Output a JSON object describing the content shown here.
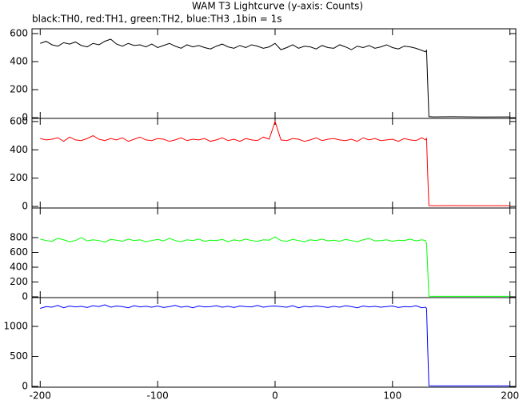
{
  "chart_data": [
    {
      "type": "line",
      "title": "WAM T3 Lightcurve (y-axis: Counts)",
      "subtitle": "black:TH0, red:TH1, green:TH2, blue:TH3 ,1bin = 1s",
      "color": "#000000",
      "x": [
        -200,
        -195,
        -190,
        -185,
        -180,
        -175,
        -170,
        -165,
        -160,
        -155,
        -150,
        -145,
        -140,
        -135,
        -130,
        -125,
        -120,
        -115,
        -110,
        -105,
        -100,
        -95,
        -90,
        -85,
        -80,
        -75,
        -70,
        -65,
        -60,
        -55,
        -50,
        -45,
        -40,
        -35,
        -30,
        -25,
        -20,
        -15,
        -10,
        -5,
        0,
        5,
        10,
        15,
        20,
        25,
        30,
        35,
        40,
        45,
        50,
        55,
        60,
        65,
        70,
        75,
        80,
        85,
        90,
        95,
        100,
        105,
        110,
        115,
        120,
        125,
        128,
        129,
        130,
        131,
        135,
        150,
        175,
        200
      ],
      "values": [
        530,
        545,
        520,
        510,
        535,
        525,
        540,
        515,
        505,
        530,
        520,
        545,
        560,
        525,
        510,
        530,
        515,
        520,
        505,
        525,
        500,
        515,
        530,
        510,
        495,
        520,
        505,
        515,
        500,
        490,
        510,
        525,
        505,
        495,
        515,
        500,
        520,
        510,
        495,
        505,
        530,
        485,
        500,
        520,
        495,
        510,
        505,
        490,
        515,
        500,
        495,
        520,
        505,
        485,
        510,
        500,
        515,
        495,
        505,
        520,
        500,
        490,
        510,
        505,
        495,
        480,
        470,
        480,
        240,
        8,
        6,
        7,
        5,
        6
      ],
      "xlim": [
        -207,
        205
      ],
      "ylim": [
        -5,
        634
      ],
      "yticks": [
        0,
        200,
        400,
        600
      ]
    },
    {
      "type": "line",
      "color": "#ff0000",
      "x": [
        -200,
        -195,
        -190,
        -185,
        -180,
        -175,
        -170,
        -165,
        -160,
        -155,
        -150,
        -145,
        -140,
        -135,
        -130,
        -125,
        -120,
        -115,
        -110,
        -105,
        -100,
        -95,
        -90,
        -85,
        -80,
        -75,
        -70,
        -65,
        -60,
        -55,
        -50,
        -45,
        -40,
        -35,
        -30,
        -25,
        -20,
        -15,
        -10,
        -5,
        0,
        5,
        10,
        15,
        20,
        25,
        30,
        35,
        40,
        45,
        50,
        55,
        60,
        65,
        70,
        75,
        80,
        85,
        90,
        95,
        100,
        105,
        110,
        115,
        120,
        125,
        128,
        129,
        130,
        131,
        135,
        150,
        175,
        200
      ],
      "values": [
        480,
        470,
        475,
        485,
        460,
        490,
        470,
        465,
        480,
        500,
        475,
        465,
        480,
        470,
        485,
        460,
        475,
        490,
        470,
        465,
        480,
        475,
        460,
        470,
        485,
        465,
        475,
        470,
        480,
        460,
        470,
        485,
        465,
        475,
        460,
        480,
        470,
        465,
        490,
        475,
        600,
        470,
        465,
        480,
        475,
        460,
        470,
        485,
        465,
        475,
        480,
        470,
        465,
        475,
        460,
        485,
        470,
        480,
        465,
        470,
        475,
        460,
        480,
        470,
        465,
        485,
        470,
        480,
        220,
        6,
        5,
        6,
        5,
        5
      ],
      "xlim": [
        -207,
        205
      ],
      "ylim": [
        -11,
        622
      ],
      "yticks": [
        0,
        200,
        400,
        600
      ]
    },
    {
      "type": "line",
      "color": "#00ff00",
      "x": [
        -200,
        -195,
        -190,
        -185,
        -180,
        -175,
        -170,
        -165,
        -160,
        -155,
        -150,
        -145,
        -140,
        -135,
        -130,
        -125,
        -120,
        -115,
        -110,
        -105,
        -100,
        -95,
        -90,
        -85,
        -80,
        -75,
        -70,
        -65,
        -60,
        -55,
        -50,
        -45,
        -40,
        -35,
        -30,
        -25,
        -20,
        -15,
        -10,
        -5,
        0,
        5,
        10,
        15,
        20,
        25,
        30,
        35,
        40,
        45,
        50,
        55,
        60,
        65,
        70,
        75,
        80,
        85,
        90,
        95,
        100,
        105,
        110,
        115,
        120,
        125,
        128,
        129,
        130,
        131,
        135,
        150,
        175,
        200
      ],
      "values": [
        780,
        760,
        750,
        790,
        770,
        745,
        760,
        800,
        755,
        770,
        760,
        740,
        775,
        765,
        750,
        780,
        760,
        770,
        745,
        760,
        775,
        755,
        790,
        760,
        745,
        770,
        760,
        780,
        750,
        765,
        760,
        775,
        745,
        770,
        755,
        780,
        760,
        750,
        770,
        765,
        810,
        760,
        750,
        775,
        760,
        745,
        770,
        760,
        780,
        755,
        765,
        750,
        775,
        760,
        745,
        770,
        790,
        755,
        760,
        770,
        750,
        765,
        760,
        780,
        755,
        770,
        760,
        720,
        370,
        8,
        7,
        6,
        7,
        6
      ],
      "xlim": [
        -207,
        205
      ],
      "ylim": [
        -11,
        1200
      ],
      "yticks": [
        0,
        200,
        400,
        600,
        800
      ]
    },
    {
      "type": "line",
      "color": "#0000ff",
      "x": [
        -200,
        -195,
        -190,
        -185,
        -180,
        -175,
        -170,
        -165,
        -160,
        -155,
        -150,
        -145,
        -140,
        -135,
        -130,
        -125,
        -120,
        -115,
        -110,
        -105,
        -100,
        -95,
        -90,
        -85,
        -80,
        -75,
        -70,
        -65,
        -60,
        -55,
        -50,
        -45,
        -40,
        -35,
        -30,
        -25,
        -20,
        -15,
        -10,
        -5,
        0,
        5,
        10,
        15,
        20,
        25,
        30,
        35,
        40,
        45,
        50,
        55,
        60,
        65,
        70,
        75,
        80,
        85,
        90,
        95,
        100,
        105,
        110,
        115,
        120,
        125,
        128,
        129,
        130,
        131,
        135,
        150,
        175,
        200
      ],
      "values": [
        1300,
        1330,
        1320,
        1350,
        1310,
        1340,
        1325,
        1335,
        1315,
        1345,
        1330,
        1360,
        1320,
        1340,
        1330,
        1310,
        1345,
        1325,
        1335,
        1320,
        1340,
        1315,
        1330,
        1350,
        1320,
        1335,
        1310,
        1340,
        1325,
        1330,
        1345,
        1320,
        1335,
        1315,
        1340,
        1330,
        1325,
        1350,
        1320,
        1335,
        1340,
        1330,
        1320,
        1345,
        1310,
        1335,
        1325,
        1340,
        1330,
        1315,
        1335,
        1320,
        1345,
        1330,
        1310,
        1340,
        1325,
        1335,
        1320,
        1330,
        1340,
        1315,
        1330,
        1325,
        1345,
        1310,
        1320,
        1300,
        620,
        10,
        8,
        9,
        8,
        9
      ],
      "xlim": [
        -207,
        205
      ],
      "ylim": [
        -13,
        1480
      ],
      "yticks": [
        0,
        500,
        1000
      ],
      "xticks": [
        -200,
        -100,
        0,
        100,
        200
      ]
    }
  ]
}
